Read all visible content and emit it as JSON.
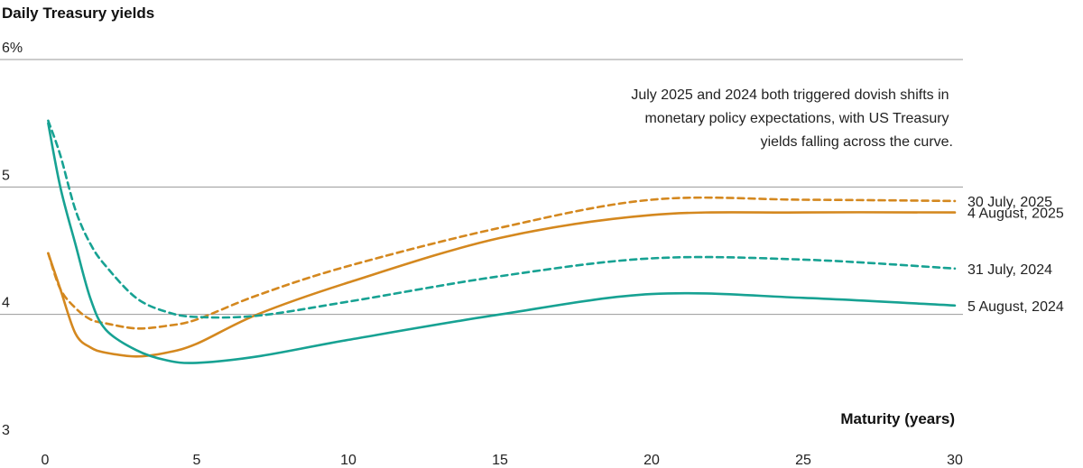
{
  "chart_data": {
    "type": "line",
    "title": "Daily Treasury yields",
    "xlabel": "Maturity (years)",
    "ylabel": "",
    "xlim": [
      0,
      30
    ],
    "ylim": [
      3,
      6
    ],
    "x_ticks": [
      "0",
      "5",
      "10",
      "15",
      "20",
      "25",
      "30"
    ],
    "x_tick_values": [
      0,
      5,
      10,
      15,
      20,
      25,
      30
    ],
    "y_ticks": [
      "6%",
      "5",
      "4",
      "3"
    ],
    "y_tick_values": [
      6,
      5,
      4,
      3
    ],
    "grid": "horizontal",
    "annotation": [
      "July 2025 and 2024 both triggered dovish shifts in",
      "monetary policy expectations, with US Treasury",
      "yields falling across the curve."
    ],
    "series": [
      {
        "name": "30 July, 2025",
        "color": "#d4881f",
        "dash": true,
        "x": [
          0.1,
          0.5,
          1,
          1.5,
          2,
          3,
          4,
          5,
          7,
          10,
          15,
          20,
          25,
          30
        ],
        "y": [
          4.48,
          4.2,
          4.05,
          3.96,
          3.93,
          3.89,
          3.91,
          3.96,
          4.15,
          4.38,
          4.68,
          4.9,
          4.9,
          4.89
        ]
      },
      {
        "name": "4 August, 2025",
        "color": "#d4881f",
        "dash": false,
        "x": [
          0.1,
          0.5,
          1,
          1.5,
          2,
          3,
          4,
          5,
          7,
          10,
          15,
          20,
          25,
          30
        ],
        "y": [
          4.48,
          4.2,
          3.85,
          3.74,
          3.7,
          3.67,
          3.7,
          3.77,
          4.0,
          4.25,
          4.6,
          4.78,
          4.8,
          4.8
        ]
      },
      {
        "name": "31 July, 2024",
        "color": "#17a293",
        "dash": true,
        "x": [
          0.1,
          0.5,
          1,
          1.5,
          2,
          3,
          4,
          5,
          7,
          10,
          15,
          20,
          25,
          30
        ],
        "y": [
          5.52,
          5.25,
          4.82,
          4.55,
          4.38,
          4.13,
          4.02,
          3.98,
          3.99,
          4.1,
          4.3,
          4.44,
          4.43,
          4.36
        ]
      },
      {
        "name": "5 August, 2024",
        "color": "#17a293",
        "dash": false,
        "x": [
          0.1,
          0.5,
          1,
          1.5,
          2,
          3,
          4,
          5,
          7,
          10,
          15,
          20,
          25,
          30
        ],
        "y": [
          5.5,
          5.0,
          4.55,
          4.12,
          3.88,
          3.72,
          3.64,
          3.62,
          3.67,
          3.8,
          4.0,
          4.16,
          4.13,
          4.07
        ]
      }
    ]
  }
}
